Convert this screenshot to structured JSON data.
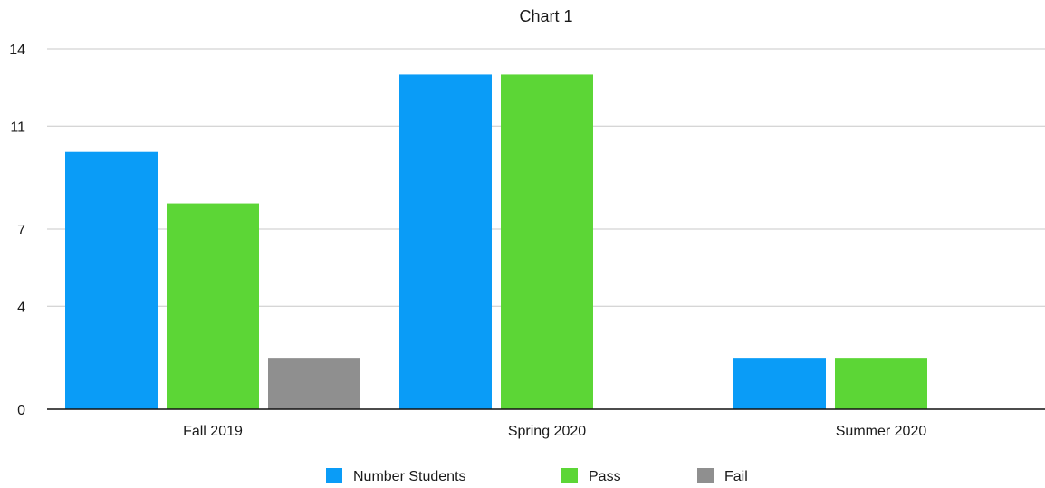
{
  "chart_data": {
    "type": "bar",
    "title": "Chart 1",
    "categories": [
      "Fall 2019",
      "Spring 2020",
      "Summer 2020"
    ],
    "series": [
      {
        "name": "Number Students",
        "values": [
          10,
          13,
          2
        ],
        "color": "#0a9cf7"
      },
      {
        "name": "Pass",
        "values": [
          8,
          13,
          2
        ],
        "color": "#5cd636"
      },
      {
        "name": "Fail",
        "values": [
          2,
          0,
          0
        ],
        "color": "#8f8f8f"
      }
    ],
    "yticks": [
      0,
      4,
      7,
      11,
      14
    ],
    "ylim": [
      0,
      14
    ],
    "grid": true,
    "legend_position": "bottom"
  }
}
